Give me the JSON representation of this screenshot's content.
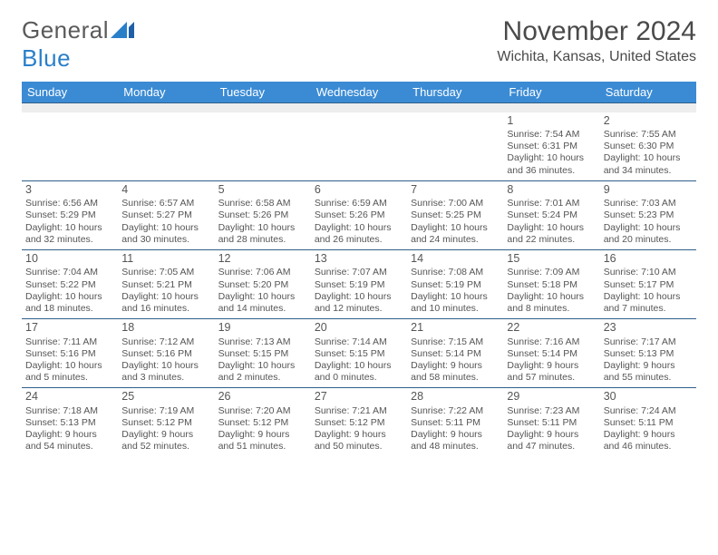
{
  "logo": {
    "text_general": "General",
    "text_blue": "Blue"
  },
  "header": {
    "month_title": "November 2024",
    "location": "Wichita, Kansas, United States"
  },
  "style": {
    "header_bg": "#3b8bd4",
    "header_text": "#ffffff",
    "sep_color": "#2f5f8a",
    "spacer_bg": "#eeeeee",
    "body_text": "#555555",
    "fontsize_day": 12.5,
    "fontsize_cell": 10.5,
    "fontsize_header": 13,
    "fontsize_title": 30,
    "fontsize_location": 16
  },
  "weekdays": [
    "Sunday",
    "Monday",
    "Tuesday",
    "Wednesday",
    "Thursday",
    "Friday",
    "Saturday"
  ],
  "weeks": [
    [
      null,
      null,
      null,
      null,
      null,
      {
        "day": "1",
        "sunrise": "Sunrise: 7:54 AM",
        "sunset": "Sunset: 6:31 PM",
        "daylight": "Daylight: 10 hours and 36 minutes."
      },
      {
        "day": "2",
        "sunrise": "Sunrise: 7:55 AM",
        "sunset": "Sunset: 6:30 PM",
        "daylight": "Daylight: 10 hours and 34 minutes."
      }
    ],
    [
      {
        "day": "3",
        "sunrise": "Sunrise: 6:56 AM",
        "sunset": "Sunset: 5:29 PM",
        "daylight": "Daylight: 10 hours and 32 minutes."
      },
      {
        "day": "4",
        "sunrise": "Sunrise: 6:57 AM",
        "sunset": "Sunset: 5:27 PM",
        "daylight": "Daylight: 10 hours and 30 minutes."
      },
      {
        "day": "5",
        "sunrise": "Sunrise: 6:58 AM",
        "sunset": "Sunset: 5:26 PM",
        "daylight": "Daylight: 10 hours and 28 minutes."
      },
      {
        "day": "6",
        "sunrise": "Sunrise: 6:59 AM",
        "sunset": "Sunset: 5:26 PM",
        "daylight": "Daylight: 10 hours and 26 minutes."
      },
      {
        "day": "7",
        "sunrise": "Sunrise: 7:00 AM",
        "sunset": "Sunset: 5:25 PM",
        "daylight": "Daylight: 10 hours and 24 minutes."
      },
      {
        "day": "8",
        "sunrise": "Sunrise: 7:01 AM",
        "sunset": "Sunset: 5:24 PM",
        "daylight": "Daylight: 10 hours and 22 minutes."
      },
      {
        "day": "9",
        "sunrise": "Sunrise: 7:03 AM",
        "sunset": "Sunset: 5:23 PM",
        "daylight": "Daylight: 10 hours and 20 minutes."
      }
    ],
    [
      {
        "day": "10",
        "sunrise": "Sunrise: 7:04 AM",
        "sunset": "Sunset: 5:22 PM",
        "daylight": "Daylight: 10 hours and 18 minutes."
      },
      {
        "day": "11",
        "sunrise": "Sunrise: 7:05 AM",
        "sunset": "Sunset: 5:21 PM",
        "daylight": "Daylight: 10 hours and 16 minutes."
      },
      {
        "day": "12",
        "sunrise": "Sunrise: 7:06 AM",
        "sunset": "Sunset: 5:20 PM",
        "daylight": "Daylight: 10 hours and 14 minutes."
      },
      {
        "day": "13",
        "sunrise": "Sunrise: 7:07 AM",
        "sunset": "Sunset: 5:19 PM",
        "daylight": "Daylight: 10 hours and 12 minutes."
      },
      {
        "day": "14",
        "sunrise": "Sunrise: 7:08 AM",
        "sunset": "Sunset: 5:19 PM",
        "daylight": "Daylight: 10 hours and 10 minutes."
      },
      {
        "day": "15",
        "sunrise": "Sunrise: 7:09 AM",
        "sunset": "Sunset: 5:18 PM",
        "daylight": "Daylight: 10 hours and 8 minutes."
      },
      {
        "day": "16",
        "sunrise": "Sunrise: 7:10 AM",
        "sunset": "Sunset: 5:17 PM",
        "daylight": "Daylight: 10 hours and 7 minutes."
      }
    ],
    [
      {
        "day": "17",
        "sunrise": "Sunrise: 7:11 AM",
        "sunset": "Sunset: 5:16 PM",
        "daylight": "Daylight: 10 hours and 5 minutes."
      },
      {
        "day": "18",
        "sunrise": "Sunrise: 7:12 AM",
        "sunset": "Sunset: 5:16 PM",
        "daylight": "Daylight: 10 hours and 3 minutes."
      },
      {
        "day": "19",
        "sunrise": "Sunrise: 7:13 AM",
        "sunset": "Sunset: 5:15 PM",
        "daylight": "Daylight: 10 hours and 2 minutes."
      },
      {
        "day": "20",
        "sunrise": "Sunrise: 7:14 AM",
        "sunset": "Sunset: 5:15 PM",
        "daylight": "Daylight: 10 hours and 0 minutes."
      },
      {
        "day": "21",
        "sunrise": "Sunrise: 7:15 AM",
        "sunset": "Sunset: 5:14 PM",
        "daylight": "Daylight: 9 hours and 58 minutes."
      },
      {
        "day": "22",
        "sunrise": "Sunrise: 7:16 AM",
        "sunset": "Sunset: 5:14 PM",
        "daylight": "Daylight: 9 hours and 57 minutes."
      },
      {
        "day": "23",
        "sunrise": "Sunrise: 7:17 AM",
        "sunset": "Sunset: 5:13 PM",
        "daylight": "Daylight: 9 hours and 55 minutes."
      }
    ],
    [
      {
        "day": "24",
        "sunrise": "Sunrise: 7:18 AM",
        "sunset": "Sunset: 5:13 PM",
        "daylight": "Daylight: 9 hours and 54 minutes."
      },
      {
        "day": "25",
        "sunrise": "Sunrise: 7:19 AM",
        "sunset": "Sunset: 5:12 PM",
        "daylight": "Daylight: 9 hours and 52 minutes."
      },
      {
        "day": "26",
        "sunrise": "Sunrise: 7:20 AM",
        "sunset": "Sunset: 5:12 PM",
        "daylight": "Daylight: 9 hours and 51 minutes."
      },
      {
        "day": "27",
        "sunrise": "Sunrise: 7:21 AM",
        "sunset": "Sunset: 5:12 PM",
        "daylight": "Daylight: 9 hours and 50 minutes."
      },
      {
        "day": "28",
        "sunrise": "Sunrise: 7:22 AM",
        "sunset": "Sunset: 5:11 PM",
        "daylight": "Daylight: 9 hours and 48 minutes."
      },
      {
        "day": "29",
        "sunrise": "Sunrise: 7:23 AM",
        "sunset": "Sunset: 5:11 PM",
        "daylight": "Daylight: 9 hours and 47 minutes."
      },
      {
        "day": "30",
        "sunrise": "Sunrise: 7:24 AM",
        "sunset": "Sunset: 5:11 PM",
        "daylight": "Daylight: 9 hours and 46 minutes."
      }
    ]
  ]
}
